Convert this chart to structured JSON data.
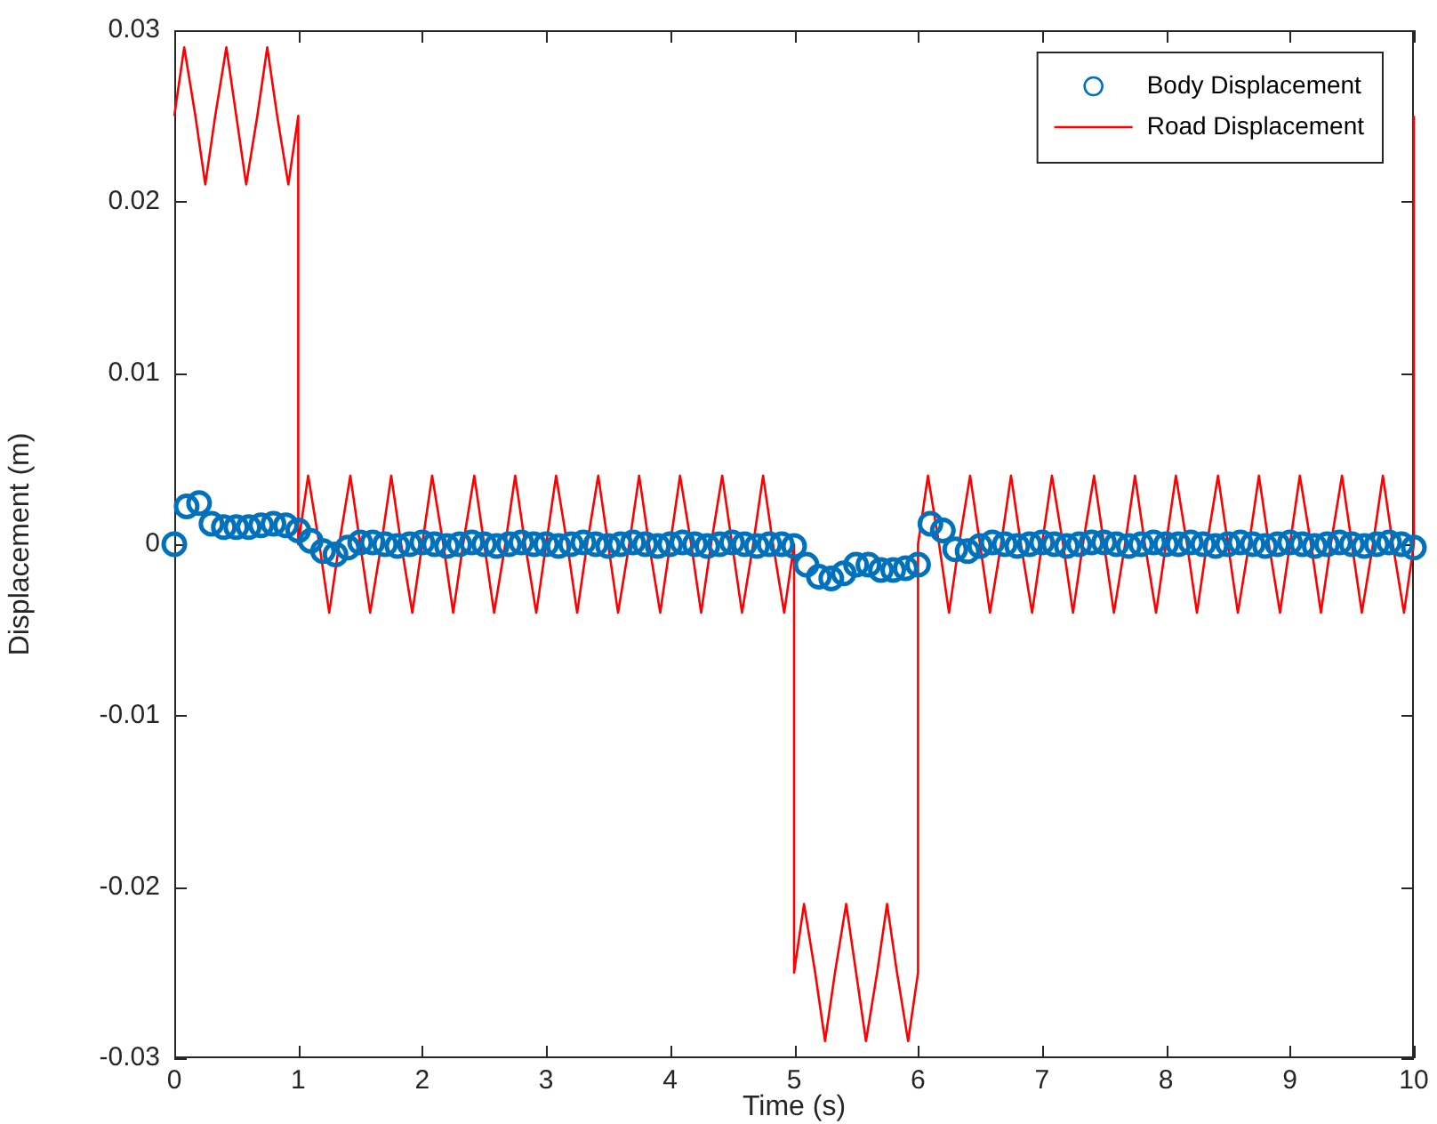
{
  "chart_data": {
    "type": "scatter",
    "xlabel": "Time (s)",
    "ylabel": "Displacement (m)",
    "xlim": [
      0,
      10
    ],
    "xticks": [
      0,
      1,
      2,
      3,
      4,
      5,
      6,
      7,
      8,
      9,
      10
    ],
    "ylim": [
      -0.03,
      0.03
    ],
    "yticks": [
      -0.03,
      -0.02,
      -0.01,
      0,
      0.01,
      0.02,
      0.03
    ],
    "grid": false,
    "legend": "top right",
    "series": [
      {
        "name": "Body Displacement",
        "marker": "circle",
        "color": "#0072bd",
        "x": [
          0,
          0.1,
          0.2,
          0.3,
          0.4,
          0.5,
          0.6,
          0.7,
          0.8,
          0.9,
          1,
          1.1,
          1.2,
          1.3,
          1.4,
          1.5,
          1.6,
          1.7,
          1.8,
          1.9,
          2,
          2.1,
          2.2,
          2.3,
          2.4,
          2.5,
          2.6,
          2.7,
          2.8,
          2.9,
          3,
          3.1,
          3.2,
          3.3,
          3.4,
          3.5,
          3.6,
          3.7,
          3.8,
          3.9,
          4,
          4.1,
          4.2,
          4.3,
          4.4,
          4.5,
          4.6,
          4.7,
          4.8,
          4.9,
          5,
          5.1,
          5.2,
          5.3,
          5.4,
          5.5,
          5.6,
          5.7,
          5.8,
          5.9,
          6,
          6.1,
          6.2,
          6.3,
          6.4,
          6.5,
          6.6,
          6.7,
          6.8,
          6.9,
          7,
          7.1,
          7.2,
          7.3,
          7.4,
          7.5,
          7.6,
          7.7,
          7.8,
          7.9,
          8,
          8.1,
          8.2,
          8.3,
          8.4,
          8.5,
          8.6,
          8.7,
          8.8,
          8.9,
          9,
          9.1,
          9.2,
          9.3,
          9.4,
          9.5,
          9.6,
          9.7,
          9.8,
          9.9,
          10
        ],
        "values": [
          0,
          0.0022,
          0.0024,
          0.0012,
          0.001,
          0.001,
          0.001,
          0.0011,
          0.0012,
          0.0011,
          0.0008,
          0.0002,
          -0.0004,
          -0.0006,
          -0.0002,
          0.0001,
          0.0001,
          0,
          -0.0001,
          0,
          0.0001,
          0,
          -0.0001,
          0,
          0.0001,
          0,
          -0.0001,
          0,
          0.0001,
          0,
          0,
          -0.0001,
          0,
          0.0001,
          0,
          -0.0001,
          0,
          0.0001,
          0,
          -0.0001,
          0,
          0.0001,
          0,
          -0.0001,
          0,
          0.0001,
          0,
          -0.0001,
          0,
          0,
          -0.0001,
          -0.0012,
          -0.0019,
          -0.002,
          -0.0017,
          -0.0012,
          -0.0012,
          -0.0015,
          -0.0015,
          -0.0014,
          -0.0012,
          0.0012,
          0.0008,
          -0.0003,
          -0.0004,
          -0.0001,
          0.0001,
          0,
          -0.0001,
          0,
          0.0001,
          0,
          -0.0001,
          0,
          0.0001,
          0.0001,
          0,
          -0.0001,
          0,
          0.0001,
          0,
          0,
          0.0001,
          0,
          -0.0001,
          0,
          0.0001,
          0,
          -0.0001,
          0,
          0.0001,
          0,
          -0.0001,
          0,
          0.0001,
          0,
          -0.0001,
          0,
          0.0001,
          0,
          -0.0002
        ]
      },
      {
        "name": "Road Displacement",
        "type": "line",
        "marker": "none",
        "color": "#ff0000",
        "x": [
          0,
          0.08,
          0.17,
          0.25,
          0.33,
          0.42,
          0.5,
          0.58,
          0.67,
          0.75,
          0.83,
          0.92,
          1,
          1,
          1.08,
          1.17,
          1.25,
          1.33,
          1.42,
          1.5,
          1.58,
          1.67,
          1.75,
          1.83,
          1.92,
          2,
          2.08,
          2.17,
          2.25,
          2.33,
          2.42,
          2.5,
          2.58,
          2.67,
          2.75,
          2.83,
          2.92,
          3,
          3.08,
          3.17,
          3.25,
          3.33,
          3.42,
          3.5,
          3.58,
          3.67,
          3.75,
          3.83,
          3.92,
          4,
          4.08,
          4.17,
          4.25,
          4.33,
          4.42,
          4.5,
          4.58,
          4.67,
          4.75,
          4.83,
          4.92,
          5,
          5,
          5.08,
          5.17,
          5.25,
          5.33,
          5.42,
          5.5,
          5.58,
          5.67,
          5.75,
          5.83,
          5.92,
          6,
          6,
          6.08,
          6.17,
          6.25,
          6.33,
          6.42,
          6.5,
          6.58,
          6.67,
          6.75,
          6.83,
          6.92,
          7,
          7.08,
          7.17,
          7.25,
          7.33,
          7.42,
          7.5,
          7.58,
          7.67,
          7.75,
          7.83,
          7.92,
          8,
          8.08,
          8.17,
          8.25,
          8.33,
          8.42,
          8.5,
          8.58,
          8.67,
          8.75,
          8.83,
          8.92,
          9,
          9.08,
          9.17,
          9.25,
          9.33,
          9.42,
          9.5,
          9.58,
          9.67,
          9.75,
          9.83,
          9.92,
          10,
          10
        ],
        "values": [
          0.025,
          0.029,
          0.025,
          0.021,
          0.025,
          0.029,
          0.025,
          0.021,
          0.025,
          0.029,
          0.025,
          0.021,
          0.025,
          0,
          0.004,
          0,
          -0.004,
          0,
          0.004,
          0,
          -0.004,
          0,
          0.004,
          0,
          -0.004,
          0,
          0.004,
          0,
          -0.004,
          0,
          0.004,
          0,
          -0.004,
          0,
          0.004,
          0,
          -0.004,
          0,
          0.004,
          0,
          -0.004,
          0,
          0.004,
          0,
          -0.004,
          0,
          0.004,
          0,
          -0.004,
          0,
          0.004,
          0,
          -0.004,
          0,
          0.004,
          0,
          -0.004,
          0,
          0.004,
          0,
          -0.004,
          0,
          -0.025,
          -0.021,
          -0.025,
          -0.029,
          -0.025,
          -0.021,
          -0.025,
          -0.029,
          -0.025,
          -0.021,
          -0.025,
          -0.029,
          -0.025,
          0,
          0.004,
          0,
          -0.004,
          0,
          0.004,
          0,
          -0.004,
          0,
          0.004,
          0,
          -0.004,
          0,
          0.004,
          0,
          -0.004,
          0,
          0.004,
          0,
          -0.004,
          0,
          0.004,
          0,
          -0.004,
          0,
          0.004,
          0,
          -0.004,
          0,
          0.004,
          0,
          -0.004,
          0,
          0.004,
          0,
          -0.004,
          0,
          0.004,
          0,
          -0.004,
          0,
          0.004,
          0,
          -0.004,
          0,
          0.004,
          0,
          -0.004,
          0,
          0.025
        ]
      }
    ]
  }
}
